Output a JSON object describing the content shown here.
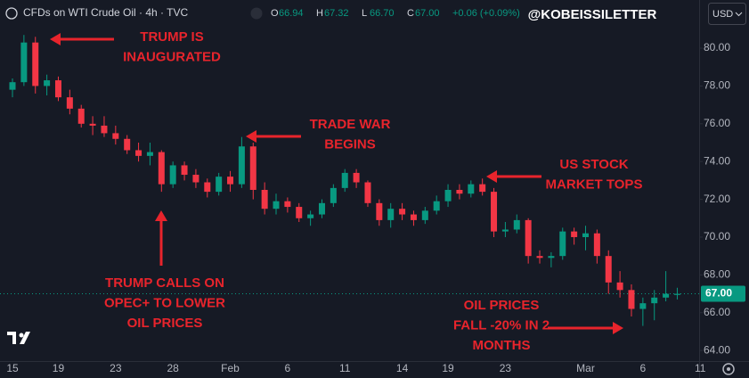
{
  "chart_data": {
    "type": "candlestick",
    "title": "CFDs on WTI Crude Oil · 4h · TVC",
    "ohlc_header": [
      {
        "key": "O",
        "text": "66.94"
      },
      {
        "key": "H",
        "text": "67.32"
      },
      {
        "key": "L",
        "text": "66.70"
      },
      {
        "key": "C",
        "text": "67.00"
      }
    ],
    "change": "+0.06 (+0.09%)",
    "watermark": "@KOBEISSILETTER",
    "currency": "USD",
    "up_color": "#089981",
    "down_color": "#f23645",
    "annotation_color": "#e8242c",
    "grid": false,
    "categories": [
      "15",
      null,
      null,
      null,
      "19",
      null,
      null,
      null,
      null,
      "23",
      null,
      null,
      null,
      null,
      "28",
      null,
      null,
      null,
      null,
      "Feb",
      null,
      null,
      null,
      null,
      "6",
      null,
      null,
      null,
      null,
      "11",
      null,
      null,
      null,
      null,
      "14",
      null,
      null,
      null,
      "19",
      null,
      null,
      null,
      null,
      "23",
      null,
      null,
      null,
      null,
      null,
      null,
      "Mar",
      null,
      null,
      null,
      null,
      "6",
      null,
      null,
      null,
      null,
      "11"
    ],
    "open": [
      77.8,
      78.2,
      80.3,
      78.0,
      78.3,
      77.4,
      76.8,
      76.0,
      75.9,
      75.5,
      75.2,
      74.6,
      74.3,
      74.5,
      72.8,
      73.8,
      73.3,
      72.9,
      72.4,
      73.2,
      72.8,
      74.8,
      72.5,
      71.5,
      71.9,
      71.6,
      71.0,
      71.2,
      71.8,
      72.6,
      73.4,
      72.9,
      71.8,
      70.9,
      71.5,
      71.2,
      70.9,
      71.4,
      71.9,
      72.5,
      72.3,
      72.8,
      72.4,
      70.3,
      70.4,
      70.9,
      69.0,
      68.9,
      69.0,
      70.3,
      70.0,
      70.2,
      69.0,
      67.6,
      67.2,
      66.2,
      66.5,
      66.8,
      66.94,
      null,
      null
    ],
    "high": [
      78.4,
      80.7,
      80.6,
      78.6,
      78.5,
      77.8,
      77.0,
      76.4,
      76.4,
      75.9,
      75.4,
      75.0,
      75.0,
      74.6,
      74.0,
      74.0,
      73.6,
      73.1,
      73.4,
      73.5,
      75.3,
      75.0,
      72.9,
      72.3,
      72.1,
      71.8,
      71.4,
      72.0,
      72.8,
      73.6,
      73.6,
      73.0,
      72.0,
      71.8,
      71.8,
      71.4,
      71.6,
      72.2,
      72.8,
      72.8,
      73.0,
      73.1,
      72.6,
      70.8,
      71.2,
      71.0,
      69.3,
      69.2,
      70.5,
      70.5,
      70.6,
      70.4,
      69.3,
      68.2,
      67.5,
      66.8,
      67.2,
      68.2,
      67.32,
      null,
      null
    ],
    "low": [
      77.4,
      78.0,
      77.6,
      77.5,
      77.2,
      76.5,
      75.8,
      75.4,
      75.3,
      74.9,
      74.4,
      74.0,
      73.8,
      72.4,
      72.6,
      73.0,
      72.6,
      72.1,
      72.2,
      72.4,
      72.6,
      72.0,
      71.2,
      71.2,
      71.3,
      70.8,
      70.6,
      71.0,
      71.6,
      72.4,
      72.6,
      71.6,
      70.6,
      70.5,
      70.9,
      70.6,
      70.7,
      71.2,
      71.6,
      72.0,
      72.1,
      72.2,
      70.0,
      70.0,
      70.2,
      68.6,
      68.6,
      68.4,
      68.8,
      69.6,
      69.3,
      68.6,
      67.0,
      66.8,
      65.8,
      65.3,
      65.6,
      66.6,
      66.7,
      null,
      null
    ],
    "close": [
      78.2,
      80.3,
      78.0,
      78.3,
      77.4,
      76.8,
      76.0,
      75.9,
      75.5,
      75.2,
      74.6,
      74.3,
      74.5,
      72.8,
      73.8,
      73.3,
      72.9,
      72.4,
      73.2,
      72.8,
      74.8,
      72.5,
      71.5,
      71.9,
      71.6,
      71.0,
      71.2,
      71.8,
      72.6,
      73.4,
      72.9,
      71.8,
      70.9,
      71.5,
      71.2,
      70.9,
      71.4,
      71.9,
      72.5,
      72.3,
      72.8,
      72.4,
      70.3,
      70.4,
      70.9,
      69.0,
      68.9,
      69.0,
      70.3,
      70.0,
      70.2,
      69.0,
      67.6,
      67.2,
      66.2,
      66.5,
      66.8,
      67.0,
      67.0,
      null,
      null
    ],
    "last_price": {
      "value": 67,
      "label": "67.00"
    },
    "ylim": [
      63.44,
      82.55
    ],
    "yticks": [
      {
        "value": 64,
        "label": "64.00"
      },
      {
        "value": 66,
        "label": "66.00"
      },
      {
        "value": 68,
        "label": "68.00"
      },
      {
        "value": 70,
        "label": "70.00"
      },
      {
        "value": 72,
        "label": "72.00"
      },
      {
        "value": 74,
        "label": "74.00"
      },
      {
        "value": 76,
        "label": "76.00"
      },
      {
        "value": 78,
        "label": "78.00"
      },
      {
        "value": 80,
        "label": "80.00"
      }
    ],
    "annotations": [
      {
        "lines": [
          "TRUMP IS",
          "INAUGURATED"
        ]
      },
      {
        "lines": [
          "TRADE WAR",
          "BEGINS"
        ]
      },
      {
        "lines": [
          "US STOCK",
          "MARKET TOPS"
        ]
      },
      {
        "lines": [
          "TRUMP CALLS ON",
          "OPEC+ TO LOWER",
          "OIL PRICES"
        ]
      },
      {
        "lines": [
          "OIL PRICES",
          "FALL -20% IN 2",
          "MONTHS"
        ]
      }
    ]
  }
}
